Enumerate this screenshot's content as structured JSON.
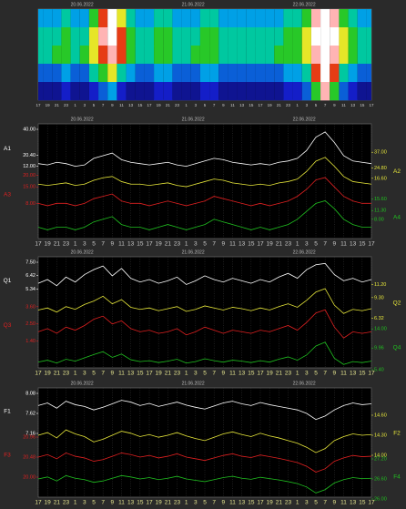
{
  "chart_data": [
    {
      "type": "heatmap",
      "dates": [
        "20.06.2022",
        "21.06.2022",
        "22.06.2022"
      ],
      "categories": [
        "17",
        "19",
        "21",
        "23",
        "1",
        "3",
        "5",
        "7",
        "9",
        "11",
        "13",
        "15",
        "17",
        "19",
        "21",
        "23",
        "1",
        "3",
        "5",
        "7",
        "9",
        "11",
        "13",
        "15",
        "17",
        "19",
        "21",
        "23",
        "1",
        "3",
        "5",
        "7",
        "9",
        "11",
        "13",
        "15",
        "17"
      ],
      "z": [
        [
          4,
          4,
          4,
          5,
          4,
          4,
          6,
          8,
          10,
          7,
          5,
          4,
          4,
          5,
          5,
          4,
          4,
          4,
          5,
          5,
          4,
          4,
          4,
          4,
          4,
          4,
          4,
          5,
          5,
          6,
          9,
          10,
          9,
          6,
          5,
          4,
          4
        ],
        [
          5,
          5,
          5,
          6,
          5,
          5,
          7,
          9,
          10,
          8,
          6,
          5,
          5,
          6,
          6,
          5,
          5,
          5,
          6,
          6,
          5,
          5,
          5,
          5,
          5,
          5,
          5,
          6,
          6,
          7,
          10,
          10,
          10,
          7,
          6,
          5,
          5
        ],
        [
          5,
          5,
          6,
          6,
          5,
          6,
          7,
          8,
          9,
          8,
          6,
          5,
          5,
          6,
          6,
          5,
          5,
          6,
          6,
          6,
          5,
          5,
          5,
          5,
          5,
          5,
          6,
          6,
          6,
          7,
          9,
          10,
          9,
          7,
          6,
          5,
          5
        ],
        [
          3,
          3,
          3,
          4,
          3,
          3,
          5,
          6,
          7,
          5,
          4,
          3,
          3,
          4,
          4,
          3,
          3,
          3,
          4,
          4,
          3,
          3,
          3,
          3,
          3,
          3,
          3,
          4,
          4,
          5,
          8,
          10,
          8,
          5,
          4,
          3,
          3
        ],
        [
          1,
          1,
          1,
          2,
          1,
          1,
          2,
          3,
          4,
          2,
          1,
          1,
          1,
          2,
          2,
          1,
          1,
          1,
          2,
          2,
          1,
          1,
          1,
          1,
          1,
          1,
          1,
          2,
          2,
          3,
          6,
          9,
          6,
          3,
          2,
          1,
          1
        ]
      ]
    },
    {
      "type": "line",
      "grid": true,
      "dates": [
        "20.06.2022",
        "21.06.2022",
        "22.06.2022"
      ],
      "categories": [
        "17",
        "19",
        "21",
        "23",
        "1",
        "3",
        "5",
        "7",
        "9",
        "11",
        "13",
        "15",
        "17",
        "19",
        "21",
        "23",
        "1",
        "3",
        "5",
        "7",
        "9",
        "11",
        "13",
        "15",
        "17",
        "19",
        "21",
        "23",
        "1",
        "3",
        "5",
        "7",
        "9",
        "11",
        "13",
        "15",
        "17"
      ],
      "series": [
        {
          "name": "A1",
          "color": "#ffffff",
          "ylim": [
            8,
            40
          ],
          "ticks": [
            {
              "value": 40,
              "label": "40.00"
            },
            {
              "value": 20.4,
              "label": "20.40"
            },
            {
              "value": 12,
              "label": "12.00"
            }
          ],
          "values": [
            14,
            13,
            15,
            14,
            12,
            13,
            18,
            20,
            22,
            17,
            15,
            14,
            13,
            14,
            15,
            13,
            12,
            14,
            16,
            18,
            17,
            15,
            14,
            13,
            14,
            13,
            15,
            16,
            18,
            24,
            34,
            38,
            30,
            20,
            16,
            15,
            14
          ]
        },
        {
          "name": "A2",
          "color": "#e8e83a",
          "ylim": [
            3.9,
            37
          ],
          "ticks": [
            {
              "value": 37,
              "label": "37.00"
            },
            {
              "value": 24.8,
              "label": "24.80"
            },
            {
              "value": 16.6,
              "label": "16.60"
            }
          ],
          "values": [
            12,
            11,
            12,
            13,
            11,
            12,
            15,
            17,
            18,
            14,
            12,
            12,
            11,
            12,
            13,
            11,
            10,
            12,
            14,
            16,
            15,
            13,
            12,
            11,
            12,
            11,
            13,
            14,
            16,
            22,
            30,
            33,
            26,
            18,
            14,
            13,
            12
          ]
        },
        {
          "name": "A3",
          "color": "#e02020",
          "ylim": [
            2,
            20
          ],
          "ticks": [
            {
              "value": 20,
              "label": "20.00"
            },
            {
              "value": 15,
              "label": "15.00"
            },
            {
              "value": 8,
              "label": "8.00"
            }
          ],
          "values": [
            8,
            7,
            8,
            8,
            7,
            8,
            10,
            11,
            12,
            9,
            8,
            8,
            7,
            8,
            9,
            8,
            7,
            8,
            9,
            11,
            10,
            9,
            8,
            7,
            8,
            7,
            8,
            9,
            11,
            14,
            18,
            19,
            15,
            11,
            9,
            8,
            8
          ]
        },
        {
          "name": "A4",
          "color": "#20c020",
          "ylim": [
            0,
            16
          ],
          "ticks": [
            {
              "value": 15.6,
              "label": "15.60"
            },
            {
              "value": 11.3,
              "label": "11.30"
            },
            {
              "value": 8,
              "label": "8.00"
            }
          ],
          "values": [
            5,
            4,
            5,
            5,
            4,
            5,
            7,
            8,
            9,
            6,
            5,
            5,
            4,
            5,
            6,
            5,
            4,
            5,
            6,
            8,
            7,
            6,
            5,
            4,
            5,
            4,
            5,
            6,
            8,
            11,
            14,
            15,
            12,
            8,
            6,
            5,
            5
          ]
        }
      ]
    },
    {
      "type": "line",
      "grid": true,
      "dates": [
        "20.06.2022",
        "21.06.2022",
        "22.06.2022"
      ],
      "categories": [
        "17",
        "19",
        "21",
        "23",
        "1",
        "3",
        "5",
        "7",
        "9",
        "11",
        "13",
        "15",
        "17",
        "19",
        "21",
        "23",
        "1",
        "3",
        "5",
        "7",
        "9",
        "11",
        "13",
        "15",
        "17",
        "19",
        "21",
        "23",
        "1",
        "3",
        "5",
        "7",
        "9",
        "11",
        "13",
        "15",
        "17"
      ],
      "series": [
        {
          "name": "Q1",
          "color": "#ffffff",
          "ylim": [
            4.2,
            7.5
          ],
          "ticks": [
            {
              "value": 7.5,
              "label": "7.50"
            },
            {
              "value": 6.42,
              "label": "6.42"
            },
            {
              "value": 5.34,
              "label": "5.34"
            }
          ],
          "values": [
            5.8,
            6.1,
            5.6,
            6.3,
            5.9,
            6.5,
            6.9,
            7.2,
            6.4,
            7.0,
            6.2,
            5.9,
            6.1,
            5.8,
            6.0,
            6.3,
            5.7,
            6.0,
            6.4,
            6.1,
            5.9,
            6.2,
            6.0,
            5.8,
            6.1,
            5.9,
            6.3,
            6.6,
            6.2,
            6.9,
            7.3,
            7.4,
            6.5,
            6.0,
            6.2,
            5.9,
            6.1
          ]
        },
        {
          "name": "Q2",
          "color": "#e8e83a",
          "ylim": [
            5.3,
            11.2
          ],
          "ticks": [
            {
              "value": 11.2,
              "label": "11.20"
            },
            {
              "value": 9.3,
              "label": "9.30"
            },
            {
              "value": 6.32,
              "label": "6.32"
            }
          ],
          "values": [
            7.5,
            7.8,
            7.2,
            8.0,
            7.6,
            8.3,
            8.8,
            9.5,
            8.4,
            9.0,
            7.9,
            7.6,
            7.8,
            7.4,
            7.7,
            8.0,
            7.3,
            7.6,
            8.1,
            7.8,
            7.5,
            7.9,
            7.7,
            7.4,
            7.8,
            7.5,
            8.0,
            8.4,
            7.9,
            8.9,
            10.1,
            10.6,
            8.2,
            7.0,
            7.6,
            7.4,
            7.7
          ]
        },
        {
          "name": "Q3",
          "color": "#e02020",
          "ylim": [
            1.0,
            3.6
          ],
          "ticks": [
            {
              "value": 3.6,
              "label": "3.60"
            },
            {
              "value": 2.5,
              "label": "2.50"
            },
            {
              "value": 1.4,
              "label": "1.40"
            }
          ],
          "values": [
            2.0,
            2.2,
            1.9,
            2.3,
            2.1,
            2.4,
            2.8,
            3.0,
            2.5,
            2.7,
            2.2,
            2.0,
            2.1,
            1.9,
            2.0,
            2.2,
            1.8,
            2.0,
            2.3,
            2.1,
            1.9,
            2.1,
            2.0,
            1.9,
            2.1,
            2.0,
            2.2,
            2.4,
            2.1,
            2.6,
            3.2,
            3.4,
            2.3,
            1.6,
            2.0,
            1.9,
            2.0
          ]
        },
        {
          "name": "Q4",
          "color": "#20c020",
          "ylim": [
            5.4,
            14
          ],
          "ticks": [
            {
              "value": 14,
              "label": "14.00"
            },
            {
              "value": 9.96,
              "label": "9.96"
            },
            {
              "value": 5.4,
              "label": "5.40"
            }
          ],
          "values": [
            7.0,
            7.4,
            6.8,
            7.6,
            7.2,
            7.9,
            8.6,
            9.2,
            8.0,
            8.7,
            7.5,
            7.1,
            7.3,
            6.9,
            7.2,
            7.6,
            6.8,
            7.1,
            7.7,
            7.3,
            7.0,
            7.4,
            7.2,
            6.9,
            7.3,
            7.0,
            7.6,
            8.1,
            7.4,
            8.5,
            10.4,
            11.2,
            7.8,
            6.5,
            7.1,
            6.9,
            7.2
          ]
        }
      ]
    },
    {
      "type": "line",
      "grid": true,
      "dates": [
        "20.06.2022",
        "21.06.2022",
        "22.06.2022"
      ],
      "categories": [
        "17",
        "19",
        "21",
        "23",
        "1",
        "3",
        "5",
        "7",
        "9",
        "11",
        "13",
        "15",
        "17",
        "19",
        "21",
        "23",
        "1",
        "3",
        "5",
        "7",
        "9",
        "11",
        "13",
        "15",
        "17",
        "19",
        "21",
        "23",
        "1",
        "3",
        "5",
        "7",
        "9",
        "11",
        "13",
        "15",
        "17"
      ],
      "series": [
        {
          "name": "F1",
          "color": "#ffffff",
          "ylim": [
            7.16,
            8.08
          ],
          "ticks": [
            {
              "value": 8.08,
              "label": "8.08"
            },
            {
              "value": 7.62,
              "label": "7.62"
            },
            {
              "value": 7.16,
              "label": "7.16"
            }
          ],
          "values": [
            7.8,
            7.86,
            7.74,
            7.9,
            7.82,
            7.78,
            7.7,
            7.76,
            7.84,
            7.92,
            7.88,
            7.8,
            7.85,
            7.78,
            7.83,
            7.88,
            7.81,
            7.76,
            7.72,
            7.79,
            7.86,
            7.9,
            7.84,
            7.8,
            7.87,
            7.82,
            7.78,
            7.74,
            7.7,
            7.62,
            7.48,
            7.56,
            7.7,
            7.8,
            7.86,
            7.82,
            7.84
          ]
        },
        {
          "name": "F2",
          "color": "#e8e83a",
          "ylim": [
            14.0,
            14.6
          ],
          "ticks": [
            {
              "value": 14.6,
              "label": "14.60"
            },
            {
              "value": 14.3,
              "label": "14.30"
            },
            {
              "value": 14,
              "label": "14.00"
            }
          ],
          "values": [
            14.3,
            14.34,
            14.26,
            14.38,
            14.32,
            14.28,
            14.2,
            14.24,
            14.3,
            14.36,
            14.33,
            14.28,
            14.31,
            14.27,
            14.3,
            14.34,
            14.29,
            14.25,
            14.22,
            14.27,
            14.32,
            14.35,
            14.31,
            14.28,
            14.33,
            14.29,
            14.26,
            14.22,
            14.18,
            14.12,
            14.04,
            14.1,
            14.22,
            14.28,
            14.32,
            14.3,
            14.31
          ]
        },
        {
          "name": "F3",
          "color": "#e02020",
          "ylim": [
            20.0,
            20.96
          ],
          "ticks": [
            {
              "value": 20.96,
              "label": "20.96"
            },
            {
              "value": 20.48,
              "label": "20.48"
            },
            {
              "value": 20,
              "label": "20.00"
            }
          ],
          "values": [
            20.48,
            20.54,
            20.44,
            20.58,
            20.5,
            20.46,
            20.38,
            20.42,
            20.5,
            20.58,
            20.54,
            20.48,
            20.52,
            20.46,
            20.5,
            20.56,
            20.48,
            20.44,
            20.4,
            20.46,
            20.52,
            20.56,
            20.5,
            20.47,
            20.53,
            20.49,
            20.45,
            20.4,
            20.35,
            20.26,
            20.12,
            20.2,
            20.38,
            20.46,
            20.52,
            20.49,
            20.5
          ]
        },
        {
          "name": "F4",
          "color": "#20c020",
          "ylim": [
            26.0,
            27.2
          ],
          "ticks": [
            {
              "value": 27.2,
              "label": "27.20"
            },
            {
              "value": 26.6,
              "label": "26.60"
            },
            {
              "value": 26,
              "label": "26.00"
            }
          ],
          "values": [
            26.6,
            26.66,
            26.54,
            26.7,
            26.62,
            26.58,
            26.5,
            26.54,
            26.62,
            26.7,
            26.66,
            26.6,
            26.64,
            26.58,
            26.62,
            26.68,
            26.6,
            26.56,
            26.52,
            26.58,
            26.64,
            26.68,
            26.62,
            26.59,
            26.65,
            26.61,
            26.57,
            26.52,
            26.46,
            26.36,
            26.18,
            26.28,
            26.48,
            26.58,
            26.64,
            26.61,
            26.62
          ]
        }
      ]
    }
  ]
}
